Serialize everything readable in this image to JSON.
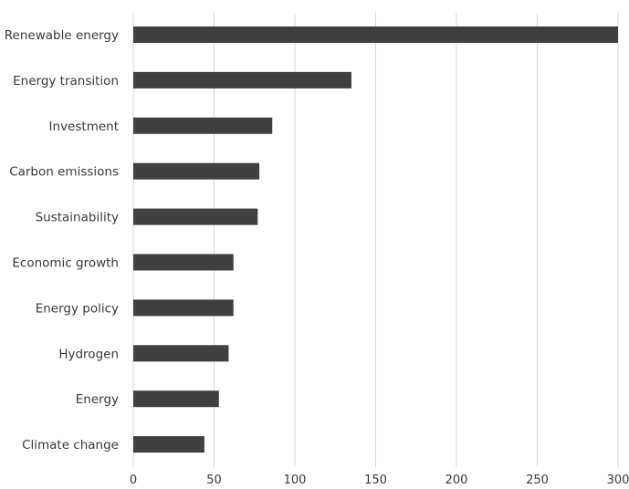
{
  "chart_data": {
    "type": "bar",
    "orientation": "horizontal",
    "title": "",
    "xlabel": "",
    "ylabel": "",
    "categories": [
      "Renewable energy",
      "Energy transition",
      "Investment",
      "Carbon emissions",
      "Sustainability",
      "Economic growth",
      "Energy policy",
      "Hydrogen",
      "Energy",
      "Climate change"
    ],
    "values": [
      300,
      135,
      86,
      78,
      77,
      62,
      62,
      59,
      53,
      44
    ],
    "xlim": [
      0,
      300
    ],
    "xticks": [
      0,
      50,
      100,
      150,
      200,
      250,
      300
    ],
    "grid": "vertical",
    "legend": "none",
    "bar_color": "#404040"
  }
}
